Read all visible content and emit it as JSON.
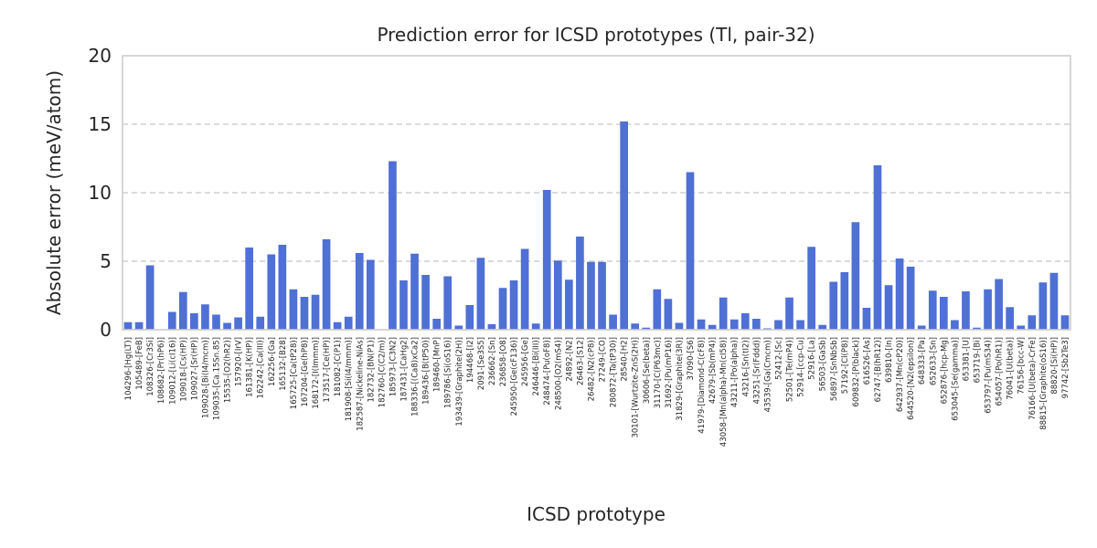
{
  "chart_data": {
    "type": "bar",
    "title": "Prediction error for ICSD prototypes (Tl, pair-32)",
    "xlabel": "ICSD prototype",
    "ylabel": "Absolute error (meV/atom)",
    "ylim": [
      0,
      20
    ],
    "yticks": [
      0,
      5,
      10,
      15,
      20
    ],
    "grid": true,
    "color": "#4f70d4",
    "categories": [
      "104296-[Hg(LT)]",
      "105489-[FeB]",
      "108326-[Cr3Si]",
      "108682-[Pr(hP6)]",
      "109012-[Li(cI16)]",
      "109018-[Cs(HP)]",
      "109027-[Sr(HP)]",
      "109028-[Bi(I4/mcm)]",
      "109035-[Ca.15Sn.85]",
      "15535-[O2(hR2)]",
      "157920-[IrV]",
      "161381-[K(HP)]",
      "162242-[Ca(III)]",
      "162256-[Ga]",
      "165132-[B28]",
      "165725-[Ca(tP28)]",
      "167204-[Ge(hP8)]",
      "168172-[I(Immm)]",
      "173517-[Ce(HP)]",
      "181082-[C(P1)]",
      "181908-[Si(I4/mmm)]",
      "182587-[Nickeline-NiAs]",
      "182732-[BN(P1)]",
      "182760-[C(C2/m)]",
      "185973-[C3N2]",
      "187431-[CaHg2]",
      "188336-[(Ca8)xCa2]",
      "189436-[B(tP50)]",
      "189460-[MnP]",
      "189786-[Si(oS16)]",
      "193439-[Graphite(2H)]",
      "194468-[I2]",
      "2091-[Se3S5]",
      "236662-[Sn]",
      "236858-[O8]",
      "245950-[Ge(cF136)]",
      "245956-[Ge]",
      "246446-[Bi(III)]",
      "248474-[Pu(oF8)]",
      "248500-[O2(mS4)]",
      "24892-[N2]",
      "26463-[S12]",
      "26482-[N2(cP8)]",
      "27249-[CO]",
      "280872-[Ta(tP30)]",
      "28540-[H2]",
      "30101-[Wurtzite-ZnS(2H)]",
      "30606-[Se(beta)]",
      "31170-[C(P63mc)]",
      "31692-[Pu(mP16)]",
      "31829-[Graphite(3R)]",
      "37090-[S6]",
      "41979-[Diamond-C(cF8)]",
      "42679-[Sb(mP4)]",
      "43058-[Mn(alpha)-Mn(cI58)]",
      "43211-[Po(alpha)]",
      "43216-[Sn(tI2)]",
      "43251-[Sr(Fddd)]",
      "43539-[Ga(Cmcm)]",
      "52412-[Sc]",
      "52501-[Te(mP4)]",
      "52914-[ccp-Cu]",
      "52916-[La]",
      "56503-[GaSb]",
      "56897-[SnNbSb]",
      "57192-[Cl(P8)]",
      "609832-[P(black)]",
      "616526-[As]",
      "62747-[B(hR12)]",
      "639810-[In]",
      "642937-[Mn(cP20)]",
      "644520-[N2(epsilon)]",
      "648333-[Pa]",
      "652633-[Sn]",
      "652876-[hcp-Mg]",
      "653045-[Se(gamma)]",
      "653381-[U]",
      "653719-[Bi]",
      "653797-[Pu(mS34)]",
      "654057-[Po(hR1)]",
      "76041-[U(beta)]",
      "76156-[bcc-W]",
      "76166-[U(beta)-CrFe]",
      "88815-[Graphite(oS16)]",
      "88820-[Si(HP)]",
      "97742-[Sb2Te3]"
    ],
    "values": [
      0.55,
      0.55,
      4.7,
      0.0,
      1.3,
      2.75,
      1.2,
      1.85,
      1.1,
      0.5,
      0.9,
      6.0,
      0.95,
      5.5,
      6.2,
      2.95,
      2.4,
      2.55,
      6.6,
      0.55,
      0.95,
      5.6,
      5.1,
      0.0,
      12.3,
      3.6,
      5.55,
      4.0,
      0.8,
      3.9,
      0.3,
      1.8,
      5.25,
      0.4,
      3.05,
      3.6,
      5.9,
      0.45,
      10.2,
      5.05,
      3.65,
      6.8,
      4.95,
      4.95,
      1.1,
      15.2,
      0.45,
      0.15,
      2.95,
      2.25,
      0.5,
      11.5,
      0.75,
      0.35,
      2.35,
      0.75,
      1.2,
      0.8,
      0.1,
      0.7,
      2.35,
      0.7,
      6.05,
      0.35,
      3.5,
      4.2,
      7.85,
      1.6,
      12.0,
      3.25,
      5.2,
      4.6,
      0.3,
      2.85,
      2.4,
      0.7,
      2.8,
      0.15,
      2.95,
      3.7,
      1.65,
      0.3,
      1.05,
      3.45,
      4.15,
      1.05
    ]
  }
}
